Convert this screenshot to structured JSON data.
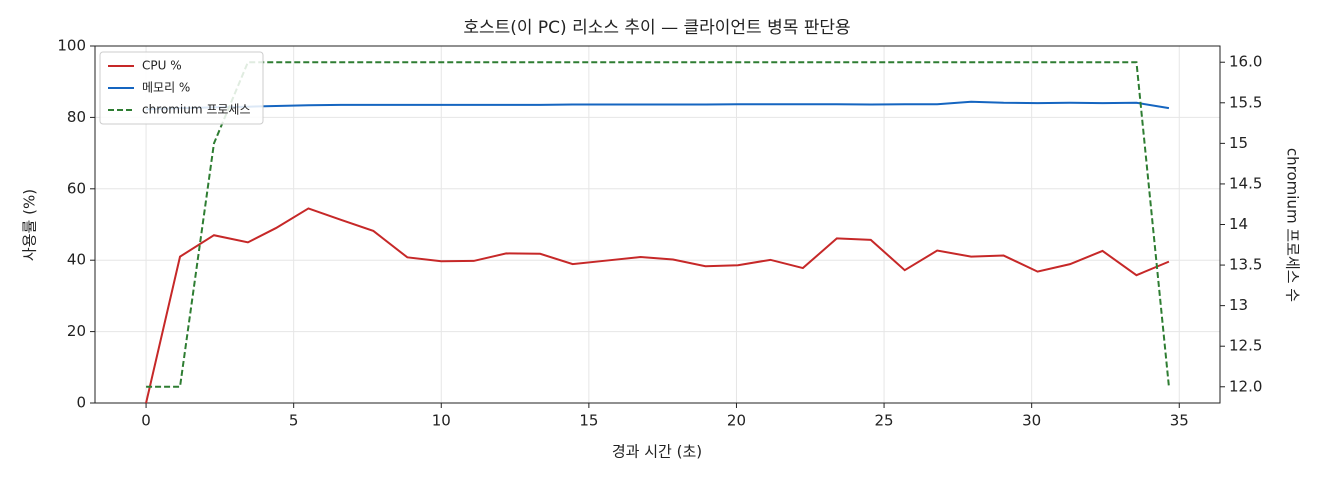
{
  "chart_data": {
    "type": "line",
    "title": "호스트(이 PC) 리소스 추이 — 클라이언트 병목 판단용",
    "x_label": "경과 시간 (초)",
    "y_label": "사용률 (%)",
    "y2_label": "chromium 프로세스 수",
    "x": [
      0,
      1.15,
      2.3,
      3.45,
      4.4,
      5.5,
      6.6,
      7.7,
      8.85,
      10.0,
      11.1,
      12.2,
      13.35,
      14.45,
      15.6,
      16.75,
      17.85,
      18.95,
      20.05,
      21.15,
      22.25,
      23.4,
      24.55,
      25.7,
      26.8,
      27.95,
      29.05,
      30.2,
      31.3,
      32.4,
      33.55,
      34.65
    ],
    "series": [
      {
        "name": "CPU %",
        "color": "#c62828",
        "dashed": false,
        "values": [
          0,
          41,
          47,
          45,
          49,
          54.5,
          51.3,
          48.2,
          40.8,
          39.7,
          39.8,
          41.9,
          41.8,
          38.9,
          39.9,
          40.9,
          40.2,
          38.3,
          38.6,
          40.1,
          37.8,
          46.1,
          45.7,
          37.2,
          42.7,
          41,
          41.3,
          36.8,
          38.9,
          42.6,
          35.8,
          39.6
        ]
      },
      {
        "name": "메모리 %",
        "color": "#1565c0",
        "dashed": false,
        "values": [
          82.3,
          82.6,
          82.8,
          83.0,
          83.2,
          83.4,
          83.5,
          83.5,
          83.5,
          83.5,
          83.5,
          83.5,
          83.5,
          83.6,
          83.6,
          83.6,
          83.6,
          83.6,
          83.7,
          83.7,
          83.7,
          83.7,
          83.6,
          83.7,
          83.7,
          84.4,
          84.1,
          84.0,
          84.1,
          84.0,
          84.1,
          82.6
        ]
      },
      {
        "name": "chromium 프로세스",
        "color": "#2e7d32",
        "dashed": true,
        "axis": "y2",
        "values": [
          12,
          12,
          15,
          16,
          16,
          16,
          16,
          16,
          16,
          16,
          16,
          16,
          16,
          16,
          16,
          16,
          16,
          16,
          16,
          16,
          16,
          16,
          16,
          16,
          16,
          16,
          16,
          16,
          16,
          16,
          16,
          12
        ]
      }
    ],
    "xlim": [
      -1.73,
      36.38
    ],
    "xticks": [
      0,
      5,
      10,
      15,
      20,
      25,
      30,
      35
    ],
    "ylim": [
      0,
      100
    ],
    "yticks": [
      0,
      20,
      40,
      60,
      80,
      100
    ],
    "y2lim": [
      11.8,
      16.2
    ],
    "y2ticks": [
      {
        "value": 12,
        "label": "12.0"
      },
      12.5,
      13,
      13.5,
      14,
      14.5,
      15,
      15.5,
      {
        "value": 16,
        "label": "16.0"
      }
    ],
    "grid": true,
    "legend": "upper-left"
  }
}
